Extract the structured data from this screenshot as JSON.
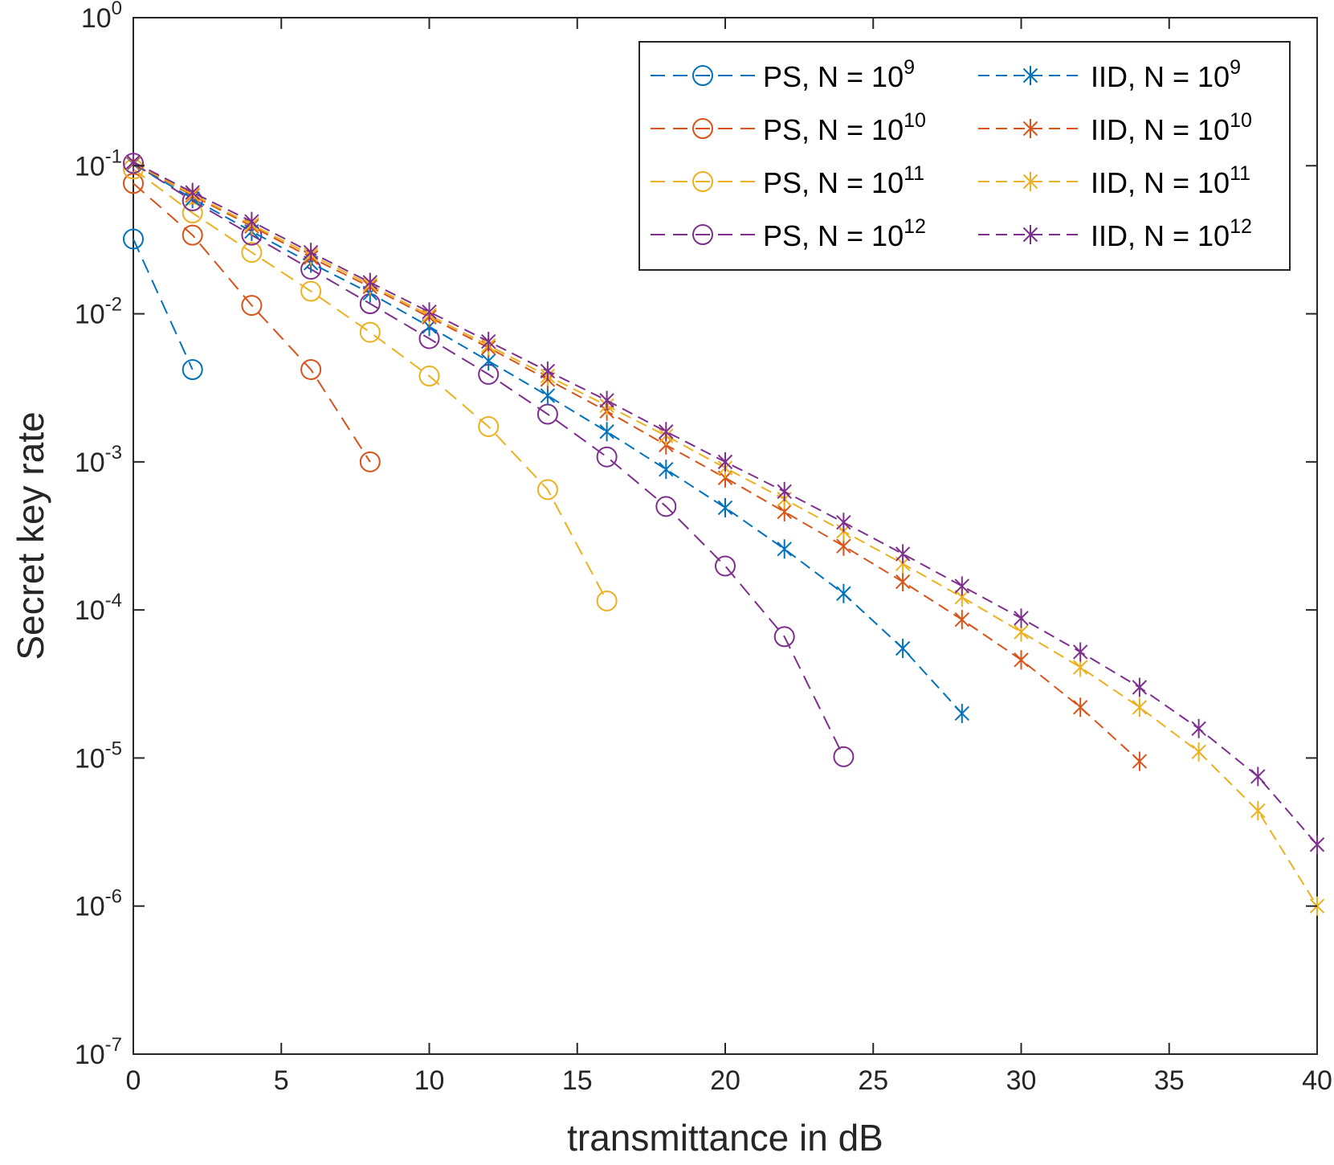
{
  "chart_data": {
    "type": "line",
    "title": "",
    "xlabel": "transmittance in dB",
    "ylabel": "Secret key rate",
    "xlim": [
      0,
      40
    ],
    "ylim_exponents": [
      -7,
      0
    ],
    "yscale": "log",
    "x_ticks": [
      "0",
      "5",
      "10",
      "15",
      "20",
      "25",
      "30",
      "35",
      "40"
    ],
    "y_ticks": [
      {
        "base": "10",
        "exp": "0"
      },
      {
        "base": "10",
        "exp": "-1"
      },
      {
        "base": "10",
        "exp": "-2"
      },
      {
        "base": "10",
        "exp": "-3"
      },
      {
        "base": "10",
        "exp": "-4"
      },
      {
        "base": "10",
        "exp": "-5"
      },
      {
        "base": "10",
        "exp": "-6"
      },
      {
        "base": "10",
        "exp": "-7"
      }
    ],
    "grid": false,
    "legend_position": "top-right",
    "series": [
      {
        "name": "PS, N = 10",
        "exp": "9",
        "color": "#0072BD",
        "marker": "circle",
        "x": [
          0,
          2
        ],
        "y": [
          0.032,
          0.0042
        ]
      },
      {
        "name": "PS, N = 10",
        "exp": "10",
        "color": "#D95319",
        "marker": "circle",
        "x": [
          0,
          2,
          4,
          6,
          8
        ],
        "y": [
          0.076,
          0.034,
          0.0114,
          0.0042,
          0.001
        ]
      },
      {
        "name": "PS, N = 10",
        "exp": "11",
        "color": "#EDB120",
        "marker": "circle",
        "x": [
          0,
          2,
          4,
          6,
          8,
          10,
          12,
          14,
          16
        ],
        "y": [
          0.095,
          0.048,
          0.026,
          0.0142,
          0.0075,
          0.0038,
          0.00173,
          0.00065,
          0.000115
        ]
      },
      {
        "name": "PS, N = 10",
        "exp": "12",
        "color": "#7E2F8E",
        "marker": "circle",
        "x": [
          0,
          2,
          4,
          6,
          8,
          10,
          12,
          14,
          16,
          18,
          20,
          22,
          24
        ],
        "y": [
          0.104,
          0.058,
          0.034,
          0.02,
          0.0117,
          0.0068,
          0.0039,
          0.0021,
          0.00108,
          0.0005,
          0.000198,
          6.6e-05,
          1.02e-05
        ]
      },
      {
        "name": "IID, N = 10",
        "exp": "9",
        "color": "#0072BD",
        "marker": "asterisk",
        "x": [
          0,
          2,
          4,
          6,
          8,
          10,
          12,
          14,
          16,
          18,
          20,
          22,
          24,
          26,
          28
        ],
        "y": [
          0.103,
          0.06,
          0.036,
          0.022,
          0.0138,
          0.0082,
          0.0048,
          0.0028,
          0.0016,
          0.00089,
          0.00049,
          0.000258,
          0.000129,
          5.5e-05,
          2e-05
        ]
      },
      {
        "name": "IID, N = 10",
        "exp": "10",
        "color": "#D95319",
        "marker": "asterisk",
        "x": [
          0,
          2,
          4,
          6,
          8,
          10,
          12,
          14,
          16,
          18,
          20,
          22,
          24,
          26,
          28,
          30,
          32,
          34
        ],
        "y": [
          0.104,
          0.063,
          0.039,
          0.024,
          0.0152,
          0.0095,
          0.0059,
          0.0036,
          0.0022,
          0.0013,
          0.00078,
          0.00046,
          0.00027,
          0.000155,
          8.6e-05,
          4.6e-05,
          2.2e-05,
          9.5e-06
        ]
      },
      {
        "name": "IID, N = 10",
        "exp": "11",
        "color": "#EDB120",
        "marker": "asterisk",
        "x": [
          0,
          2,
          4,
          6,
          8,
          10,
          12,
          14,
          16,
          18,
          20,
          22,
          24,
          26,
          28,
          30,
          32,
          34,
          36,
          38,
          40
        ],
        "y": [
          0.105,
          0.064,
          0.04,
          0.025,
          0.0157,
          0.0098,
          0.0061,
          0.0038,
          0.0024,
          0.0015,
          0.00091,
          0.00056,
          0.00034,
          0.000205,
          0.000122,
          7.1e-05,
          4.1e-05,
          2.2e-05,
          1.1e-05,
          4.4e-06,
          1e-06
        ]
      },
      {
        "name": "IID, N = 10",
        "exp": "12",
        "color": "#7E2F8E",
        "marker": "asterisk",
        "x": [
          0,
          2,
          4,
          6,
          8,
          10,
          12,
          14,
          16,
          18,
          20,
          22,
          24,
          26,
          28,
          30,
          32,
          34,
          36,
          38,
          40
        ],
        "y": [
          0.106,
          0.066,
          0.042,
          0.026,
          0.0163,
          0.0103,
          0.0065,
          0.0041,
          0.0026,
          0.0016,
          0.001,
          0.00063,
          0.00039,
          0.000239,
          0.000145,
          8.8e-05,
          5.2e-05,
          3e-05,
          1.58e-05,
          7.5e-06,
          2.6e-06
        ]
      }
    ]
  }
}
